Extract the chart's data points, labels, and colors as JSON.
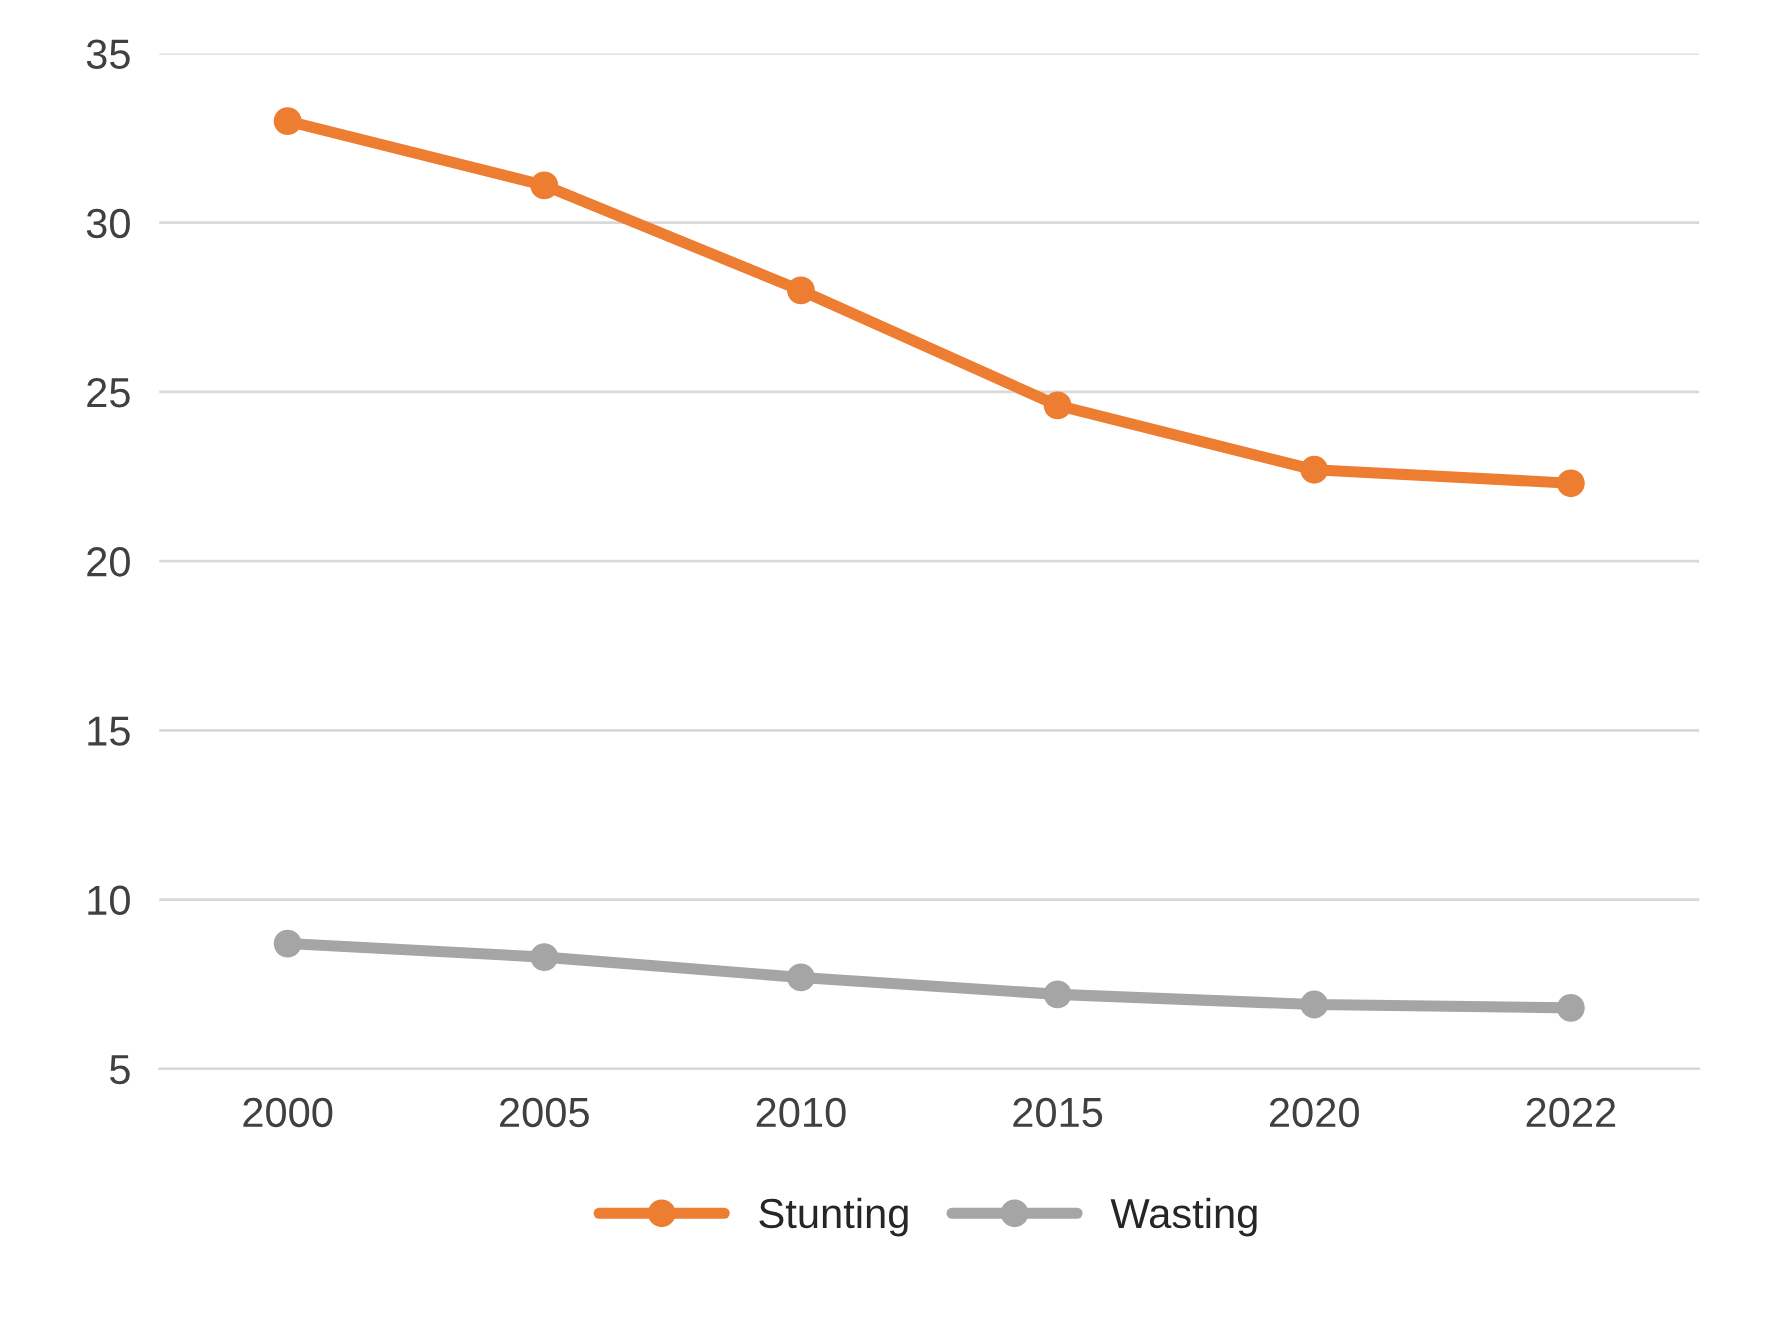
{
  "chart_data": {
    "type": "line",
    "categories": [
      "2000",
      "2005",
      "2010",
      "2015",
      "2020",
      "2022"
    ],
    "series": [
      {
        "name": "Stunting",
        "color": "#ed7d31",
        "values": [
          33.0,
          31.1,
          28.0,
          24.6,
          22.7,
          22.3
        ]
      },
      {
        "name": "Wasting",
        "color": "#a5a5a5",
        "values": [
          8.7,
          8.3,
          7.7,
          7.2,
          6.9,
          6.8
        ]
      }
    ],
    "ylim": [
      5,
      35
    ],
    "yticks": [
      5,
      10,
      15,
      20,
      25,
      30,
      35
    ],
    "grid": "y",
    "legend": "bottom",
    "marker": "circle",
    "line_style": "solid"
  }
}
